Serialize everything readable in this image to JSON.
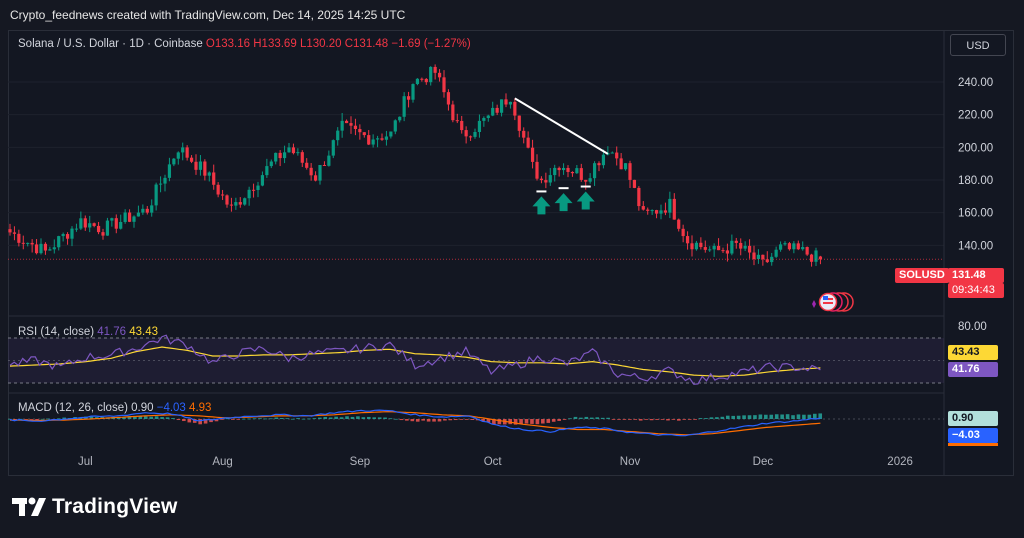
{
  "attribution": "Crypto_feednews created with TradingView.com, Dec 14, 2025 14:25 UTC",
  "currency_button": "USD",
  "legend": {
    "symbol": "Solana / U.S. Dollar · 1D · Coinbase",
    "o": "O133.16",
    "h": "H133.69",
    "l": "L130.20",
    "c": "C131.48",
    "chg": "−1.69 (−1.27%)"
  },
  "price_tag": {
    "symbol": "SOLUSD",
    "price": "131.48",
    "countdown": "09:34:43"
  },
  "rsi": {
    "label": "RSI (14, close)",
    "value": "41.76",
    "ma": "43.43",
    "axis_tick": "80.00"
  },
  "macd": {
    "label": "MACD (12, 26, close)",
    "macd": "0.90",
    "signal": "−4.03",
    "hist": "4.93",
    "tag_macd": "0.90",
    "tag_signal": "−4.03"
  },
  "footer": {
    "logo_text": "TradingView"
  },
  "colors": {
    "up": "#089981",
    "down": "#f23645",
    "rsi_line": "#7e57c2",
    "rsi_ma": "#fdd835",
    "macd_line": "#2962ff",
    "signal_line": "#ff6d00"
  },
  "chart_data": [
    {
      "type": "candlestick",
      "title": "Solana / U.S. Dollar · 1D · Coinbase",
      "y_ticks": [
        "240.00",
        "220.00",
        "200.00",
        "180.00",
        "160.00",
        "140.00"
      ],
      "ylim": [
        120,
        255
      ],
      "x_ticks": [
        "Jul",
        "Aug",
        "Sep",
        "Oct",
        "Nov",
        "Dec",
        "2026"
      ],
      "close_path": [
        {
          "date": "2025-06-14",
          "close": 148
        },
        {
          "date": "2025-06-22",
          "close": 136
        },
        {
          "date": "2025-06-30",
          "close": 155
        },
        {
          "date": "2025-07-05",
          "close": 150
        },
        {
          "date": "2025-07-15",
          "close": 162
        },
        {
          "date": "2025-07-22",
          "close": 200
        },
        {
          "date": "2025-07-28",
          "close": 185
        },
        {
          "date": "2025-08-03",
          "close": 162
        },
        {
          "date": "2025-08-12",
          "close": 190
        },
        {
          "date": "2025-08-16",
          "close": 200
        },
        {
          "date": "2025-08-22",
          "close": 182
        },
        {
          "date": "2025-08-28",
          "close": 212
        },
        {
          "date": "2025-09-03",
          "close": 206
        },
        {
          "date": "2025-09-08",
          "close": 208
        },
        {
          "date": "2025-09-13",
          "close": 240
        },
        {
          "date": "2025-09-18",
          "close": 246
        },
        {
          "date": "2025-09-24",
          "close": 207
        },
        {
          "date": "2025-09-30",
          "close": 218
        },
        {
          "date": "2025-10-05",
          "close": 232
        },
        {
          "date": "2025-10-10",
          "close": 188
        },
        {
          "date": "2025-10-12",
          "close": 180
        },
        {
          "date": "2025-10-16",
          "close": 190
        },
        {
          "date": "2025-10-22",
          "close": 182
        },
        {
          "date": "2025-10-27",
          "close": 200
        },
        {
          "date": "2025-10-31",
          "close": 188
        },
        {
          "date": "2025-11-04",
          "close": 158
        },
        {
          "date": "2025-11-10",
          "close": 165
        },
        {
          "date": "2025-11-14",
          "close": 143
        },
        {
          "date": "2025-11-20",
          "close": 136
        },
        {
          "date": "2025-11-25",
          "close": 140
        },
        {
          "date": "2025-12-01",
          "close": 128
        },
        {
          "date": "2025-12-05",
          "close": 138
        },
        {
          "date": "2025-12-10",
          "close": 136
        },
        {
          "date": "2025-12-14",
          "close": 131.48
        }
      ],
      "trendline": [
        {
          "date": "2025-10-06",
          "price": 230
        },
        {
          "date": "2025-10-27",
          "price": 196
        }
      ],
      "arrows": [
        {
          "date": "2025-10-12",
          "price": 173
        },
        {
          "date": "2025-10-17",
          "price": 175
        },
        {
          "date": "2025-10-22",
          "price": 176
        }
      ],
      "last_price": 131.48
    },
    {
      "type": "line",
      "title": "RSI (14, close)",
      "series": [
        {
          "name": "RSI",
          "values": [
            46,
            50,
            44,
            53,
            55,
            61,
            70,
            64,
            48,
            56,
            61,
            52,
            56,
            58,
            61,
            64,
            46,
            52,
            58,
            40,
            46,
            53,
            47,
            57,
            38,
            34,
            41,
            32,
            36,
            40,
            44,
            44,
            41.76
          ]
        },
        {
          "name": "MA",
          "values": [
            45,
            46,
            47,
            49,
            52,
            58,
            62,
            59,
            54,
            54,
            55,
            55,
            56,
            57,
            59,
            60,
            56,
            55,
            53,
            49,
            48,
            48,
            47,
            49,
            46,
            42,
            40,
            37,
            36,
            37,
            40,
            42,
            43.43
          ]
        }
      ]
    },
    {
      "type": "line",
      "title": "MACD (12, 26, close)",
      "series": [
        {
          "name": "MACD",
          "values": [
            -1,
            -2,
            0,
            2,
            3,
            6,
            5,
            -2,
            1,
            3,
            4,
            3,
            6,
            8,
            8,
            4,
            2,
            3,
            -6,
            -10,
            -12,
            -8,
            -9,
            -13,
            -15,
            -16,
            -12,
            -8,
            -4,
            -2,
            0.9
          ]
        },
        {
          "name": "Signal",
          "values": [
            -1,
            -1.5,
            -1,
            0,
            1.5,
            3,
            4,
            3,
            1,
            2,
            3,
            3,
            4,
            6,
            7,
            6,
            4,
            3,
            -1,
            -5,
            -8,
            -10,
            -10,
            -12,
            -14,
            -15,
            -14,
            -11,
            -8,
            -6,
            -4.03
          ]
        }
      ]
    }
  ]
}
